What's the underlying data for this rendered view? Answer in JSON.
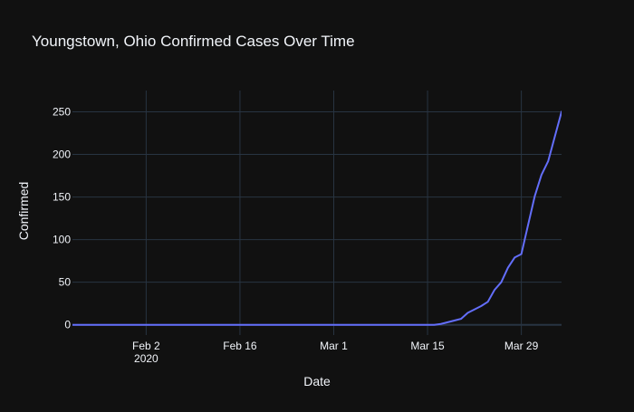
{
  "colors": {
    "background": "#111111",
    "grid": "#283442",
    "zero_line": "#283442",
    "text": "#f2f5fa",
    "line": "#636efa"
  },
  "chart_data": {
    "type": "line",
    "title": "Youngstown, Ohio Confirmed Cases Over Time",
    "xlabel": "Date",
    "ylabel": "Confirmed",
    "grid": true,
    "legend": "none",
    "xlim": [
      "2020-01-22",
      "2020-04-04"
    ],
    "ylim": [
      -12,
      275
    ],
    "x_ticks": [
      {
        "date": "2020-02-02",
        "label": "Feb 2",
        "sublabel": "2020"
      },
      {
        "date": "2020-02-16",
        "label": "Feb 16",
        "sublabel": ""
      },
      {
        "date": "2020-03-01",
        "label": "Mar 1",
        "sublabel": ""
      },
      {
        "date": "2020-03-15",
        "label": "Mar 15",
        "sublabel": ""
      },
      {
        "date": "2020-03-29",
        "label": "Mar 29",
        "sublabel": ""
      }
    ],
    "y_ticks": [
      {
        "value": 0,
        "label": "0"
      },
      {
        "value": 50,
        "label": "50"
      },
      {
        "value": 100,
        "label": "100"
      },
      {
        "value": 150,
        "label": "150"
      },
      {
        "value": 200,
        "label": "200"
      },
      {
        "value": 250,
        "label": "250"
      }
    ],
    "series": [
      {
        "color": "#636efa",
        "points": [
          {
            "x": "2020-01-22",
            "y": 0
          },
          {
            "x": "2020-03-15",
            "y": 0
          },
          {
            "x": "2020-03-16",
            "y": 0
          },
          {
            "x": "2020-03-17",
            "y": 1
          },
          {
            "x": "2020-03-18",
            "y": 3
          },
          {
            "x": "2020-03-19",
            "y": 5
          },
          {
            "x": "2020-03-20",
            "y": 7
          },
          {
            "x": "2020-03-21",
            "y": 14
          },
          {
            "x": "2020-03-22",
            "y": 18
          },
          {
            "x": "2020-03-23",
            "y": 22
          },
          {
            "x": "2020-03-24",
            "y": 27
          },
          {
            "x": "2020-03-25",
            "y": 41
          },
          {
            "x": "2020-03-26",
            "y": 50
          },
          {
            "x": "2020-03-27",
            "y": 67
          },
          {
            "x": "2020-03-28",
            "y": 79
          },
          {
            "x": "2020-03-29",
            "y": 83
          },
          {
            "x": "2020-03-30",
            "y": 117
          },
          {
            "x": "2020-03-31",
            "y": 151
          },
          {
            "x": "2020-04-01",
            "y": 176
          },
          {
            "x": "2020-04-02",
            "y": 192
          },
          {
            "x": "2020-04-03",
            "y": 221
          },
          {
            "x": "2020-04-04",
            "y": 250
          },
          {
            "x": "2020-04-05",
            "y": 260
          }
        ]
      }
    ]
  }
}
